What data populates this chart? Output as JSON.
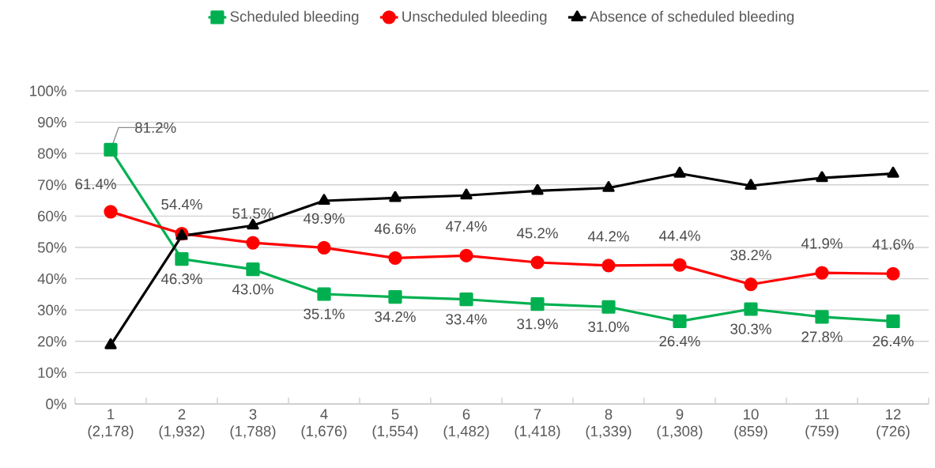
{
  "chart_data": {
    "type": "line",
    "categories": [
      "1 (2,178)",
      "2 (1,932)",
      "3 (1,788)",
      "4 (1,676)",
      "5 (1,554)",
      "6 (1,482)",
      "7 (1,418)",
      "8 (1,339)",
      "9 (1,308)",
      "10 (859)",
      "11 (759)",
      "12 (726)"
    ],
    "series": [
      {
        "name": "Scheduled bleeding",
        "color": "#00b050",
        "marker": "square",
        "values": [
          81.2,
          46.3,
          43.0,
          35.1,
          34.2,
          33.4,
          31.9,
          31.0,
          26.4,
          30.3,
          27.8,
          26.4
        ],
        "value_labels": [
          "81.2%",
          "46.3%",
          "43.0%",
          "35.1%",
          "34.2%",
          "33.4%",
          "31.9%",
          "31.0%",
          "26.4%",
          "30.3%",
          "27.8%",
          "26.4%"
        ]
      },
      {
        "name": "Unscheduled bleeding",
        "color": "#ff0000",
        "marker": "circle",
        "values": [
          61.4,
          54.4,
          51.5,
          49.9,
          46.6,
          47.4,
          45.2,
          44.2,
          44.4,
          38.2,
          41.9,
          41.6
        ],
        "value_labels": [
          "61.4%",
          "54.4%",
          "51.5%",
          "49.9%",
          "46.6%",
          "47.4%",
          "45.2%",
          "44.2%",
          "44.4%",
          "38.2%",
          "41.9%",
          "41.6%"
        ]
      },
      {
        "name": "Absence of scheduled bleeding",
        "color": "#000000",
        "marker": "triangle",
        "values": [
          18.8,
          53.7,
          57.0,
          64.9,
          65.8,
          66.6,
          68.1,
          69.0,
          73.6,
          69.7,
          72.2,
          73.6
        ]
      }
    ],
    "ylim": [
      0,
      100
    ],
    "yticks": [
      {
        "value": 0,
        "label": "0%"
      },
      {
        "value": 10,
        "label": "10%"
      },
      {
        "value": 20,
        "label": "20%"
      },
      {
        "value": 30,
        "label": "30%"
      },
      {
        "value": 40,
        "label": "40%"
      },
      {
        "value": 50,
        "label": "50%"
      },
      {
        "value": 60,
        "label": "60%"
      },
      {
        "value": 70,
        "label": "70%"
      },
      {
        "value": 80,
        "label": "80%"
      },
      {
        "value": 90,
        "label": "90%"
      },
      {
        "value": 100,
        "label": "100%"
      }
    ],
    "grid": "y",
    "legend": "top",
    "line_style": "solid"
  }
}
